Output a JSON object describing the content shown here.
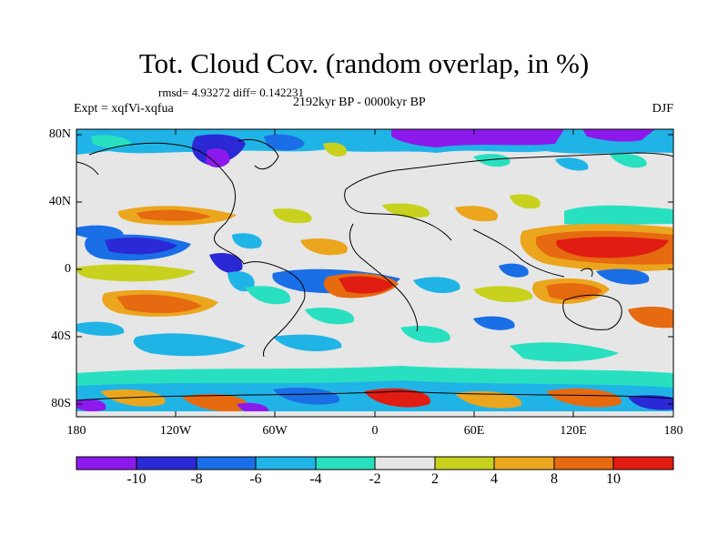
{
  "title": "Tot. Cloud Cov. (random overlap, in %)",
  "stats": "rmsd= 4.93272 diff= 0.142231",
  "experiment": "Expt = xqfVi-xqfua",
  "period": "2192kyr BP - 0000kyr BP",
  "season": "DJF",
  "lat_labels": [
    "80N",
    "40N",
    "0",
    "40S",
    "80S"
  ],
  "lon_labels": [
    "180",
    "120W",
    "60W",
    "0",
    "60E",
    "120E",
    "180"
  ],
  "colorbar": {
    "labels": [
      "-10",
      "-8",
      "-6",
      "-4",
      "-2",
      "2",
      "4",
      "8",
      "10"
    ],
    "colors": [
      "#8c1aec",
      "#2b28d6",
      "#1a6ee6",
      "#20b4e6",
      "#28e0c0",
      "#e6e6e6",
      "#c8d21e",
      "#eba61e",
      "#e66a10",
      "#e11c12"
    ]
  }
}
